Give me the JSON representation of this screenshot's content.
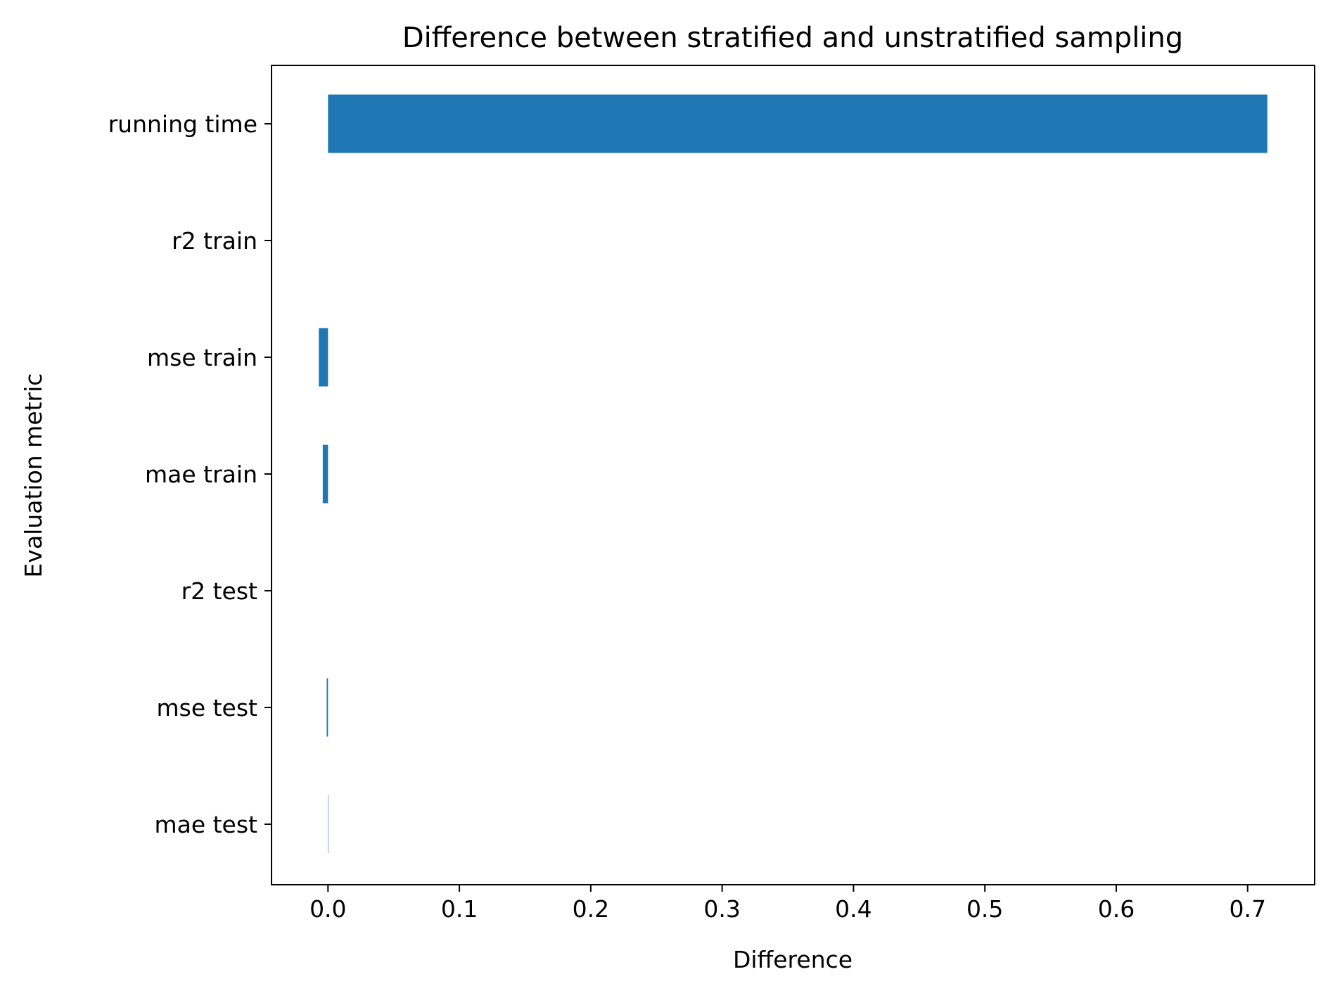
{
  "chart_data": {
    "type": "bar",
    "orientation": "horizontal",
    "title": "Difference between stratified and unstratified sampling",
    "xlabel": "Difference",
    "ylabel": "Evaluation metric",
    "categories": [
      "running time",
      "r2 train",
      "mse train",
      "mae train",
      "r2 test",
      "mse test",
      "mae test"
    ],
    "values": [
      0.715,
      0.0,
      -0.007,
      -0.004,
      0.0,
      -0.001,
      0.0003
    ],
    "xlim": [
      -0.043,
      0.751
    ],
    "xticks": [
      0.0,
      0.1,
      0.2,
      0.3,
      0.4,
      0.5,
      0.6,
      0.7
    ],
    "xtick_labels": [
      "0.0",
      "0.1",
      "0.2",
      "0.3",
      "0.4",
      "0.5",
      "0.6",
      "0.7"
    ],
    "grid": false,
    "legend": "none",
    "bar_color": "#1f77b4"
  }
}
